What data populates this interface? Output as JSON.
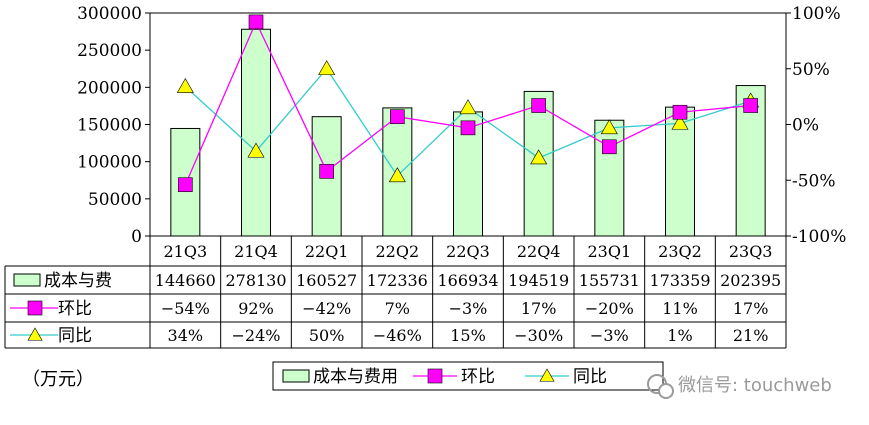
{
  "chart_data": {
    "type": "bar",
    "categories": [
      "21Q3",
      "21Q4",
      "22Q1",
      "22Q2",
      "22Q3",
      "22Q4",
      "23Q1",
      "23Q2",
      "23Q3"
    ],
    "series": [
      {
        "name": "成本与费用",
        "type": "bar",
        "axis": "left",
        "values": [
          144660,
          278130,
          160527,
          172336,
          166934,
          194519,
          155731,
          173359,
          202395
        ],
        "labels": [
          "144660",
          "278130",
          "160527",
          "172336",
          "166934",
          "194519",
          "155731",
          "173359",
          "202395"
        ],
        "row_label": "成本与费",
        "color": "#ccffcc"
      },
      {
        "name": "环比",
        "type": "line",
        "axis": "right",
        "values": [
          -54,
          92,
          -42,
          7,
          -3,
          17,
          -20,
          11,
          17
        ],
        "labels": [
          "-54%",
          "92%",
          "-42%",
          "7%",
          "-3%",
          "17%",
          "-20%",
          "11%",
          "17%"
        ],
        "row_label": "环比",
        "color": "#ff00ff",
        "marker": "square"
      },
      {
        "name": "同比",
        "type": "line",
        "axis": "right",
        "values": [
          34,
          -24,
          50,
          -46,
          15,
          -30,
          -3,
          1,
          21
        ],
        "labels": [
          "34%",
          "-24%",
          "50%",
          "-46%",
          "15%",
          "-30%",
          "-3%",
          "1%",
          "21%"
        ],
        "row_label": "同比",
        "color": "#33cccc",
        "marker": "triangle",
        "marker_color": "#ffff00"
      }
    ],
    "y_left": {
      "min": 0,
      "max": 300000,
      "ticks": [
        "0",
        "50000",
        "100000",
        "150000",
        "200000",
        "250000",
        "300000"
      ]
    },
    "y_right": {
      "min": -100,
      "max": 100,
      "ticks": [
        "-100%",
        "-50%",
        "0%",
        "50%",
        "100%"
      ]
    },
    "unit_label": "（万元）",
    "legend": {
      "placement": "bottom",
      "items": [
        "成本与费用",
        "环比",
        "同比"
      ]
    },
    "grid": false,
    "data_table": true
  },
  "watermark": "微信号: touchweb"
}
